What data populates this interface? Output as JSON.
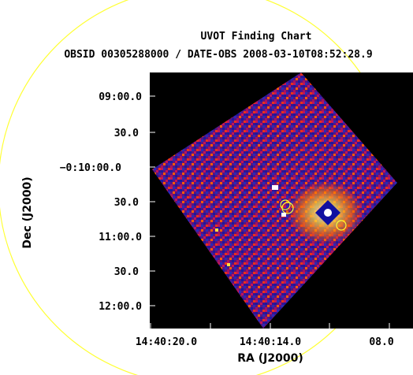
{
  "title": "UVOT Finding Chart",
  "subtitle": "OBSID 00305288000 / DATE-OBS 2008-03-10T08:52:28.9",
  "axes": {
    "x_label": "RA (J2000)",
    "y_label": "Dec (J2000)",
    "x_ticks": [
      "14:40:20.0",
      "14:40:14.0",
      "08.0"
    ],
    "y_ticks": [
      "09:00.0",
      "30.0",
      "−0:10:00.0",
      "30.0",
      "11:00.0",
      "30.0",
      "12:00.0"
    ]
  },
  "colors": {
    "background": "#000000",
    "circle": "#ffff33",
    "marker": "#ffffff",
    "noise_dark": "#1a1a9e",
    "noise_mid": "#a3135f",
    "noise_hot": "#ff5a00"
  }
}
